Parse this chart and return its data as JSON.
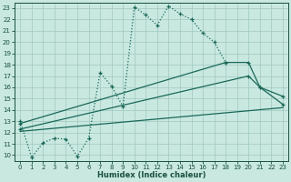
{
  "xlabel": "Humidex (Indice chaleur)",
  "bg_color": "#c8e8e0",
  "line_color": "#1a6858",
  "grid_color": "#a0c8c0",
  "xlim": [
    -0.5,
    23.5
  ],
  "ylim": [
    9.5,
    23.5
  ],
  "xticks": [
    0,
    1,
    2,
    3,
    4,
    5,
    6,
    7,
    8,
    9,
    10,
    11,
    12,
    13,
    14,
    15,
    16,
    17,
    18,
    19,
    20,
    21,
    22,
    23
  ],
  "yticks": [
    10,
    11,
    12,
    13,
    14,
    15,
    16,
    17,
    18,
    19,
    20,
    21,
    22,
    23
  ],
  "line1_x": [
    0,
    1,
    2,
    3,
    4,
    5,
    6,
    7,
    8,
    9,
    10,
    11,
    12,
    13,
    14,
    15,
    16,
    17,
    18
  ],
  "line1_y": [
    13.0,
    9.8,
    11.1,
    11.5,
    11.4,
    9.9,
    11.5,
    17.3,
    16.1,
    14.3,
    23.1,
    22.4,
    21.5,
    23.2,
    22.5,
    22.0,
    20.8,
    20.0,
    18.2
  ],
  "line2_x": [
    0,
    18,
    20,
    21,
    23
  ],
  "line2_y": [
    12.8,
    18.2,
    18.2,
    16.0,
    14.5
  ],
  "line3_x": [
    0,
    20,
    21,
    23
  ],
  "line3_y": [
    12.3,
    17.0,
    16.0,
    15.2
  ],
  "line4_x": [
    0,
    23
  ],
  "line4_y": [
    12.1,
    14.2
  ],
  "tick_fontsize": 5,
  "xlabel_fontsize": 6,
  "tick_color": "#1a5040",
  "spine_color": "#1a5040"
}
